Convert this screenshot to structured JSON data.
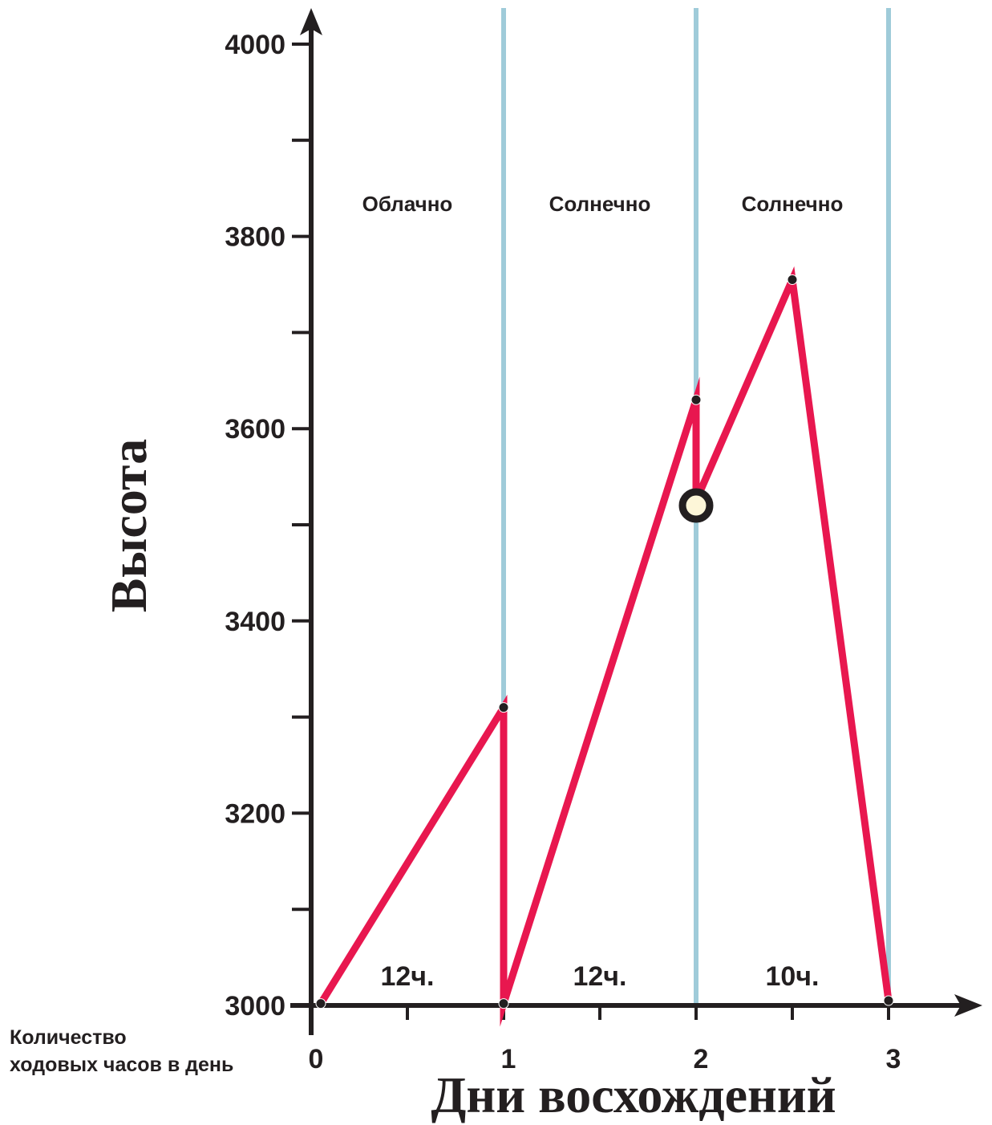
{
  "chart_data": {
    "type": "line",
    "xlabel": "Дни восхождений",
    "ylabel": "Высота",
    "x_ticks": [
      "0",
      "1",
      "2",
      "3"
    ],
    "y_ticks": [
      "3000",
      "3200",
      "3400",
      "3600",
      "3800",
      "4000"
    ],
    "xlim": [
      0,
      3
    ],
    "ylim": [
      3000,
      4000
    ],
    "day_boundaries": [
      1,
      2,
      3
    ],
    "weather": [
      "Облачно",
      "Солнечно",
      "Солнечно"
    ],
    "hours": [
      "12ч.",
      "12ч.",
      "10ч."
    ],
    "series": [
      {
        "x": [
          0.05,
          1.0,
          1.0,
          2.0,
          2.0,
          2.5,
          3.0
        ],
        "y": [
          3002,
          3310,
          3002,
          3630,
          3525,
          3755,
          3005
        ]
      }
    ],
    "marker": {
      "x": 2.0,
      "y": 3520
    },
    "colors": {
      "line": "#e8174f",
      "grid": "#9fcbd9",
      "axis": "#231f20",
      "marker_fill": "#fdf6d8"
    }
  },
  "note": "Количество\nходовых часов в день"
}
